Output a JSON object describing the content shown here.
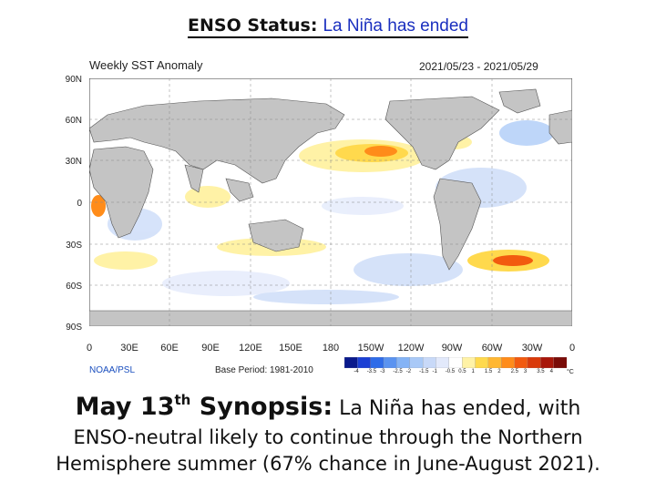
{
  "slide": {
    "title_bold": "ENSO Status:",
    "title_rest": "La Niña has ended"
  },
  "map": {
    "title": "Weekly SST Anomaly",
    "date_range": "2021/05/23 - 2021/05/29",
    "lat_labels": [
      "90N",
      "60N",
      "30N",
      "0",
      "30S",
      "60S",
      "90S"
    ],
    "lon_labels": [
      "0",
      "30E",
      "60E",
      "90E",
      "120E",
      "150E",
      "180",
      "150W",
      "120W",
      "90W",
      "60W",
      "30W",
      "0"
    ],
    "credit": "NOAA/PSL",
    "base_period": "Base Period: 1981-2010",
    "colorbar": {
      "labels": [
        "-4",
        "-3.5",
        "-3",
        "-2.5",
        "-2",
        "-1.5",
        "-1",
        "-0.5",
        "0.5",
        "1",
        "1.5",
        "2",
        "2.5",
        "3",
        "3.5",
        "4"
      ],
      "unit": "°C",
      "colors": [
        "#0a1a8c",
        "#1a3fd4",
        "#2f6ce8",
        "#5a93f0",
        "#84b3f5",
        "#a9c9f7",
        "#c8d9f8",
        "#e2e9fb",
        "#ffffff",
        "#fff2a6",
        "#ffd94d",
        "#ffb733",
        "#ff8c1a",
        "#f25a0f",
        "#d93a0a",
        "#a8170a",
        "#7a0c08"
      ]
    }
  },
  "synopsis": {
    "head": "May 13",
    "sup": "th",
    "head_rest": " Synopsis:",
    "line1_text": " La Niña has ended, with",
    "line2": "ENSO-neutral likely to continue through the Northern",
    "line3": "Hemisphere summer (67% chance in June-August 2021)."
  }
}
